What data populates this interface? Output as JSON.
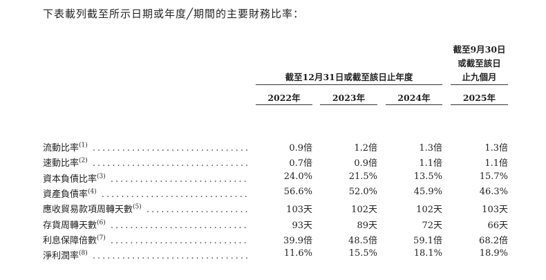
{
  "intro": "下表載列截至所示日期或年度╱期間的主要財務比率：",
  "table": {
    "group_header": "截至12月31日或截至該日止年度",
    "period_header": [
      "截至9月30日",
      "或截至該日",
      "止九個月"
    ],
    "years": [
      "2022年",
      "2023年",
      "2024年",
      "2025年"
    ],
    "rows": [
      {
        "label": "流動比率",
        "note": "(1)",
        "values": [
          "0.9倍",
          "1.2倍",
          "1.3倍",
          "1.3倍"
        ]
      },
      {
        "label": "速動比率",
        "note": "(2)",
        "values": [
          "0.7倍",
          "0.9倍",
          "1.1倍",
          "1.1倍"
        ]
      },
      {
        "label": "資本負債比率",
        "note": "(3)",
        "values": [
          "24.0%",
          "21.5%",
          "13.5%",
          "15.7%"
        ]
      },
      {
        "label": "資產負債率",
        "note": "(4)",
        "values": [
          "56.6%",
          "52.0%",
          "45.9%",
          "46.3%"
        ]
      },
      {
        "label": "應收貿易款項周轉天數",
        "note": "(5)",
        "values": [
          "103天",
          "102天",
          "102天",
          "103天"
        ]
      },
      {
        "label": "存貨周轉天數",
        "note": "(6)",
        "values": [
          "93天",
          "89天",
          "72天",
          "66天"
        ]
      },
      {
        "label": "利息保障倍數",
        "note": "(7)",
        "values": [
          "39.9倍",
          "48.5倍",
          "59.1倍",
          "68.2倍"
        ]
      },
      {
        "label": "淨利潤率",
        "note": "(8)",
        "values": [
          "11.6%",
          "15.5%",
          "18.1%",
          "18.9%"
        ]
      }
    ]
  }
}
